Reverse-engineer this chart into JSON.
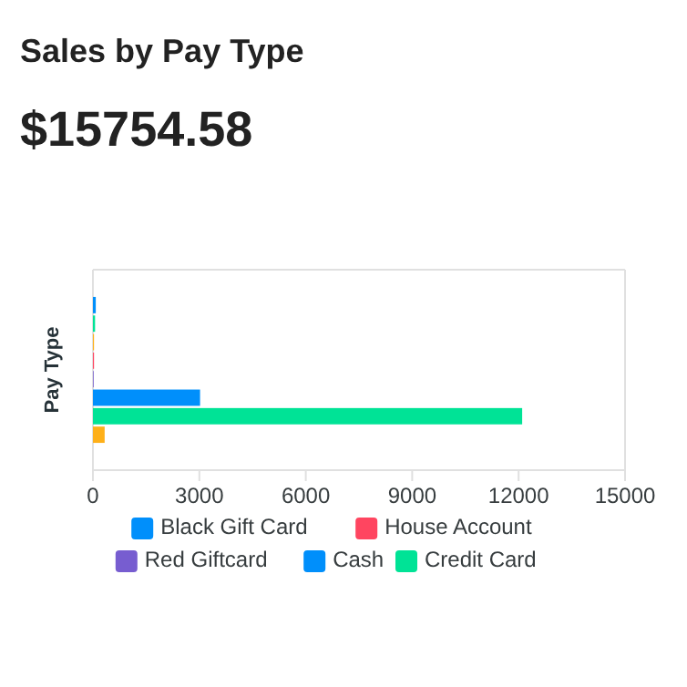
{
  "chart_data": {
    "type": "bar",
    "orientation": "horizontal",
    "title": "Sales by Pay Type",
    "subtitle": "$15754.58",
    "ylabel": "Pay Type",
    "categories": [
      null
    ],
    "series": [
      {
        "name": "Black Gift Card",
        "color": "#008ffb",
        "values": [
          80
        ]
      },
      {
        "color": "#00e396",
        "values": [
          60
        ]
      },
      {
        "color": "#feb019",
        "values": [
          30
        ]
      },
      {
        "name": "House Account",
        "color": "#ff4560",
        "values": [
          30
        ]
      },
      {
        "name": "Red Giftcard",
        "color": "#775dd0",
        "values": [
          20
        ]
      },
      {
        "name": "Cash",
        "color": "#008ffb",
        "values": [
          3020
        ]
      },
      {
        "name": "Credit Card",
        "color": "#00e396",
        "values": [
          12100
        ]
      },
      {
        "color": "#feb019",
        "values": [
          330
        ]
      }
    ],
    "xlim": [
      0,
      15000
    ],
    "xticks": [
      0,
      3000,
      6000,
      9000,
      12000,
      15000
    ],
    "grid": false,
    "legend": "bottom"
  }
}
